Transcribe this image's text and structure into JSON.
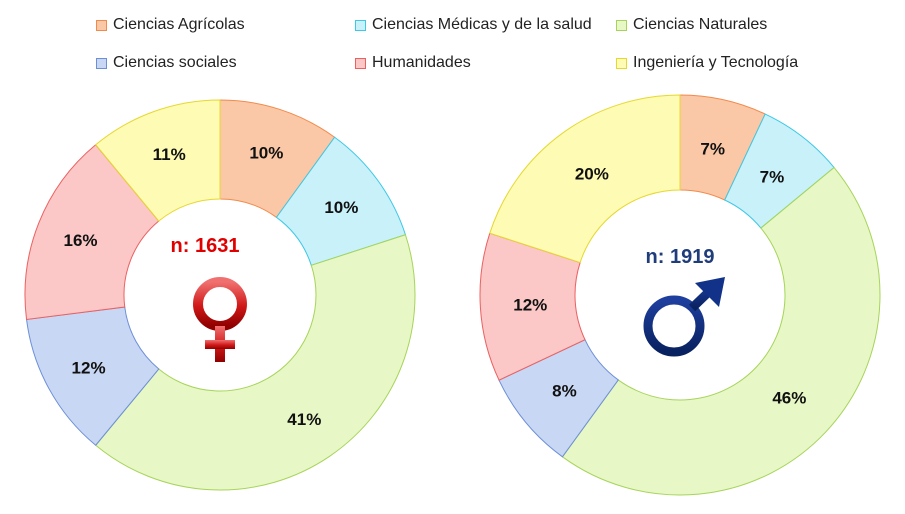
{
  "chart_data": [
    {
      "type": "pie",
      "variant": "donut",
      "center_label": "n: 1631",
      "center_label_color": "#e00000",
      "symbol": "female-symbol",
      "symbol_color": "#c00000",
      "categories": [
        "Ciencias Agrícolas",
        "Ciencias Médicas y de la salud",
        "Ciencias Naturales",
        "Ciencias sociales",
        "Humanidades",
        "Ingeniería y Tecnología"
      ],
      "values": [
        10,
        10,
        41,
        12,
        16,
        11
      ],
      "labels": [
        "10%",
        "10%",
        "41%",
        "12%",
        "16%",
        "11%"
      ]
    },
    {
      "type": "pie",
      "variant": "donut",
      "center_label": "n: 1919",
      "center_label_color": "#1f3d7a",
      "symbol": "male-symbol",
      "symbol_color": "#0d2a80",
      "categories": [
        "Ciencias Agrícolas",
        "Ciencias Médicas y de la salud",
        "Ciencias Naturales",
        "Ciencias sociales",
        "Humanidades",
        "Ingeniería y Tecnología"
      ],
      "values": [
        7,
        7,
        46,
        8,
        12,
        20
      ],
      "labels": [
        "7%",
        "7%",
        "46%",
        "8%",
        "12%",
        "20%"
      ]
    }
  ],
  "legend": [
    {
      "label": "Ciencias Agrícolas",
      "fill": "#fac8a6",
      "stroke": "#f28a4b"
    },
    {
      "label": "Ciencias Médicas y de la salud",
      "fill": "#c9f1f9",
      "stroke": "#3cc8e6"
    },
    {
      "label": "Ciencias Naturales",
      "fill": "#e7f7c6",
      "stroke": "#a6d45a"
    },
    {
      "label": "Ciencias sociales",
      "fill": "#c8d7f3",
      "stroke": "#6c8fd8"
    },
    {
      "label": "Humanidades",
      "fill": "#fbc7c7",
      "stroke": "#ec6060"
    },
    {
      "label": "Ingeniería y Tecnología",
      "fill": "#fdfbb4",
      "stroke": "#e6d82e"
    }
  ]
}
